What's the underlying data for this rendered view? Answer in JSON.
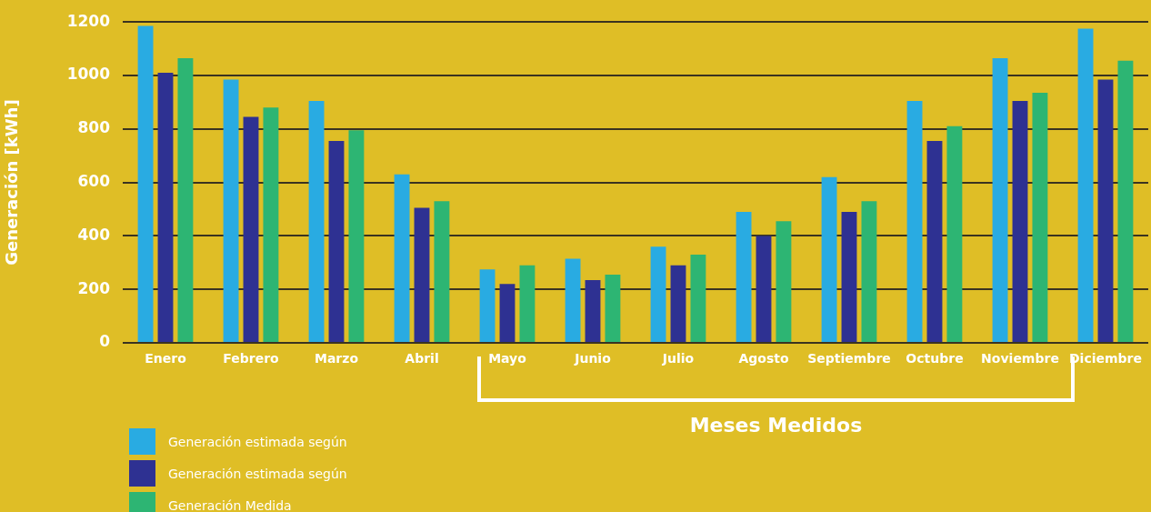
{
  "chart_data": {
    "type": "bar",
    "ylabel": "Generación [kWh]",
    "categories": [
      "Enero",
      "Febrero",
      "Marzo",
      "Abril",
      "Mayo",
      "Junio",
      "Julio",
      "Agosto",
      "Septiembre",
      "Octubre",
      "Noviembre",
      "Diciembre"
    ],
    "series": [
      {
        "name": "Generación estimada según",
        "color": "#29abe2",
        "values": [
          1185,
          985,
          905,
          630,
          275,
          315,
          360,
          490,
          620,
          905,
          1065,
          1175
        ]
      },
      {
        "name": "Generación estimada según",
        "color": "#2e3192",
        "values": [
          1010,
          845,
          755,
          505,
          220,
          235,
          290,
          400,
          490,
          755,
          905,
          985
        ]
      },
      {
        "name": "Generación Medida",
        "color": "#2db573",
        "values": [
          1065,
          880,
          795,
          530,
          290,
          255,
          330,
          455,
          530,
          810,
          935,
          1055
        ]
      }
    ],
    "ylim": [
      0,
      1200
    ],
    "yticks": [
      0,
      200,
      400,
      600,
      800,
      1000,
      1200
    ],
    "grid": "y",
    "legend": "bottom left",
    "annotations": [
      "Meses Medidos"
    ]
  }
}
